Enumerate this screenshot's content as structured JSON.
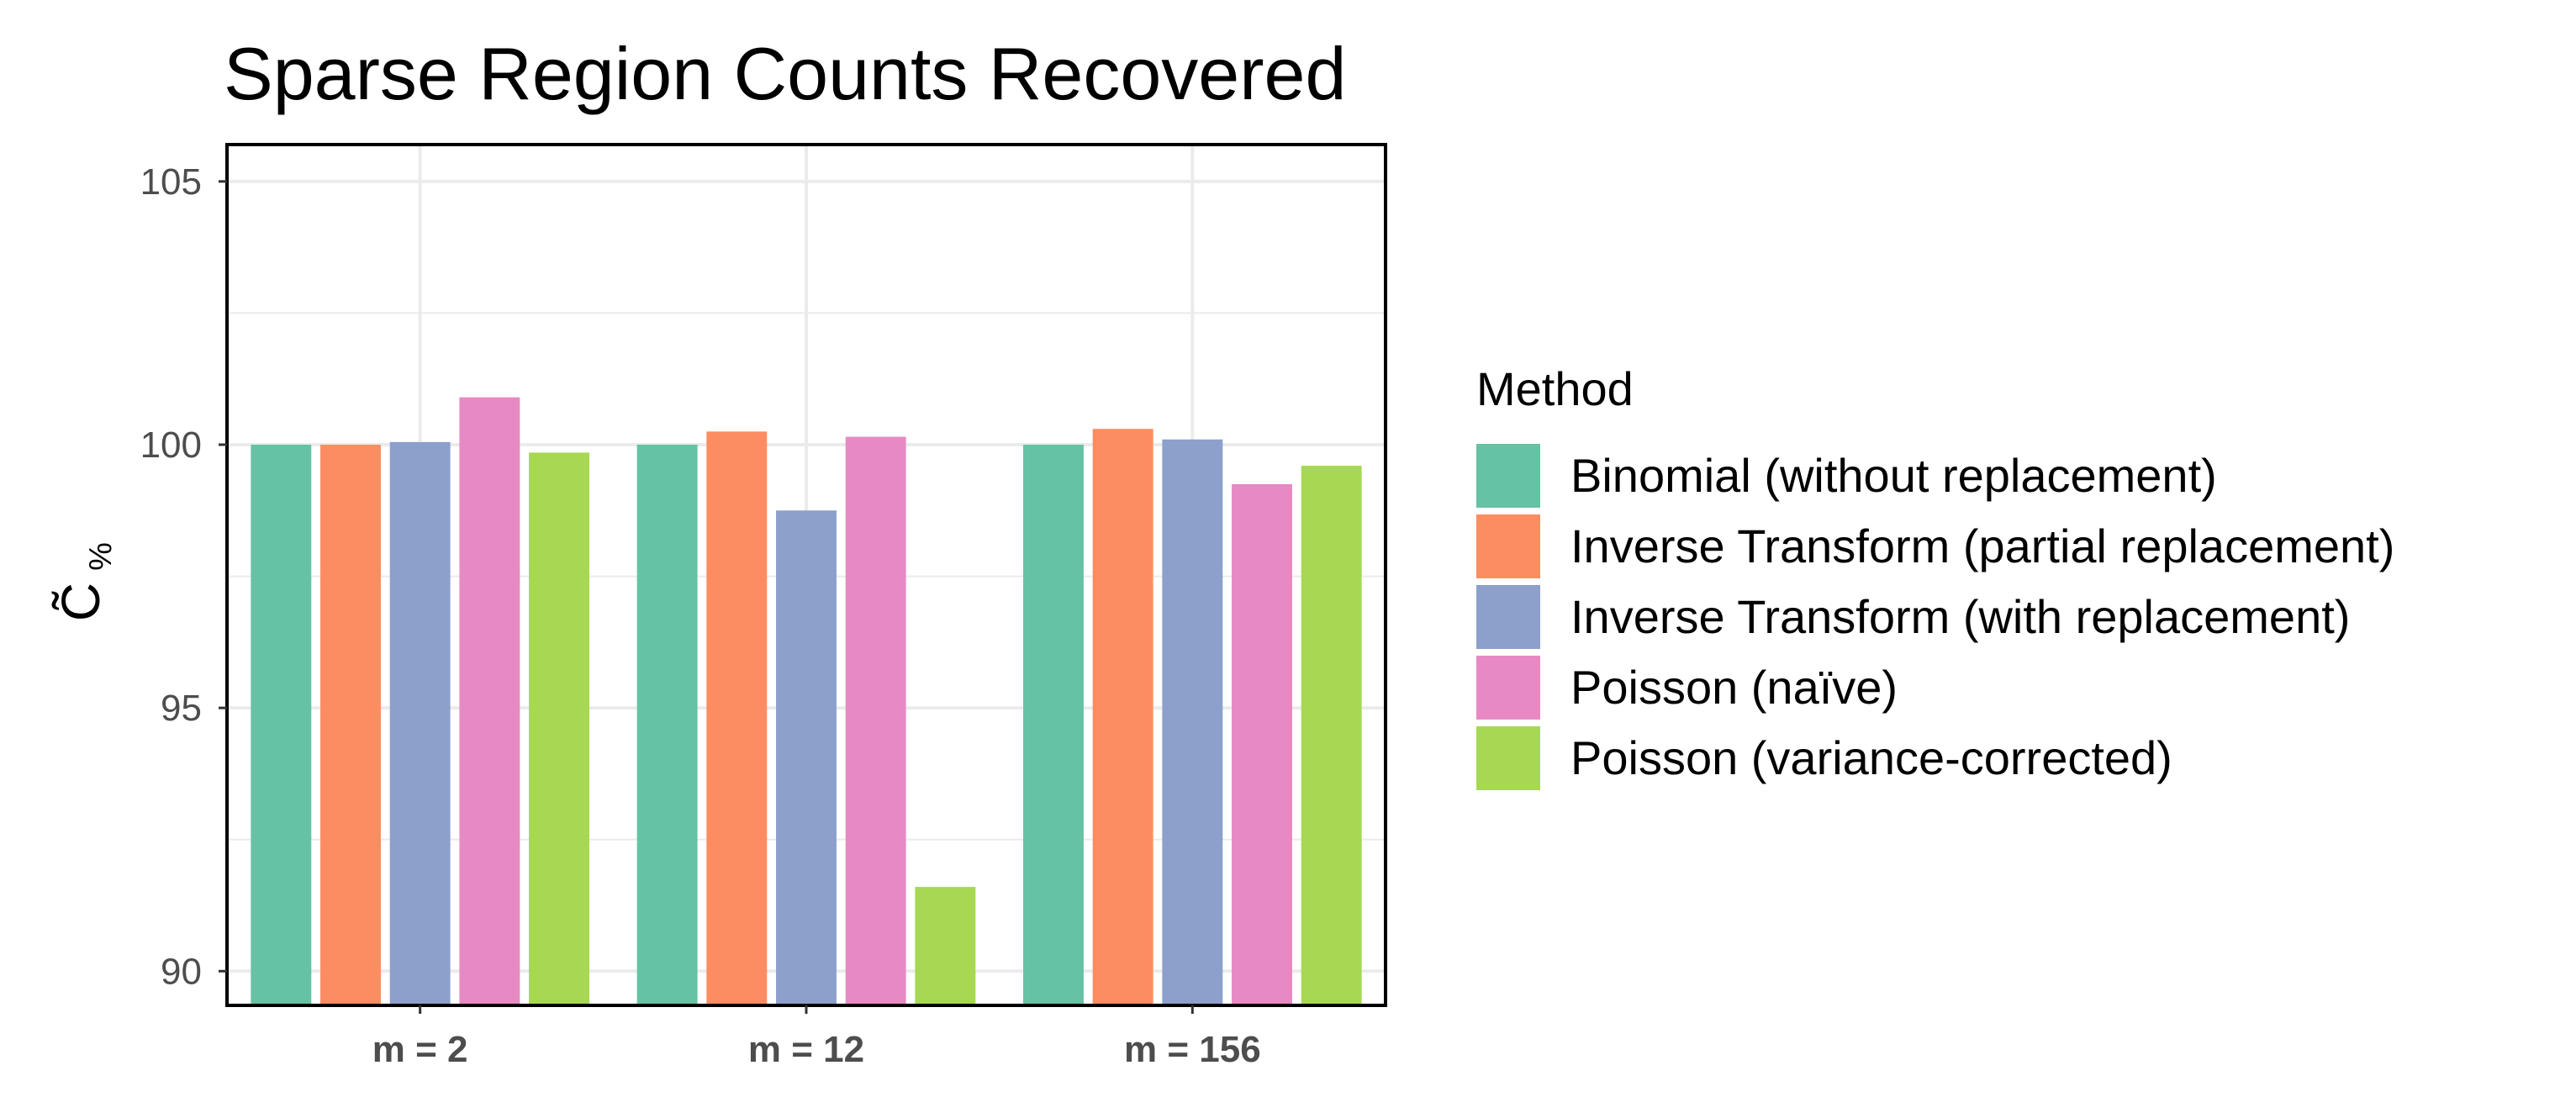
{
  "chart_data": {
    "type": "bar",
    "title": "Sparse Region Counts Recovered",
    "ylabel": "C̃",
    "ylabel_subscript": "%",
    "xlabel": "",
    "categories": [
      "m = 2",
      "m = 12",
      "m = 156"
    ],
    "ylim": [
      89.35,
      105.7
    ],
    "yticks": [
      90,
      95,
      100,
      105
    ],
    "grid": true,
    "legend": {
      "title": "Method",
      "position": "right"
    },
    "series": [
      {
        "name": "Binomial (without replacement)",
        "color": "#66c2a5",
        "values": [
          100.0,
          100.0,
          100.0
        ]
      },
      {
        "name": "Inverse Transform (partial replacement)",
        "color": "#fc8d62",
        "values": [
          100.0,
          100.25,
          100.3
        ]
      },
      {
        "name": "Inverse Transform (with replacement)",
        "color": "#8da0cb",
        "values": [
          100.05,
          98.75,
          100.1
        ]
      },
      {
        "name": "Poisson (naïve)",
        "color": "#e78ac3",
        "values": [
          100.9,
          100.15,
          99.25
        ]
      },
      {
        "name": "Poisson (variance-corrected)",
        "color": "#a6d854",
        "values": [
          99.85,
          91.6,
          99.6
        ]
      }
    ]
  }
}
